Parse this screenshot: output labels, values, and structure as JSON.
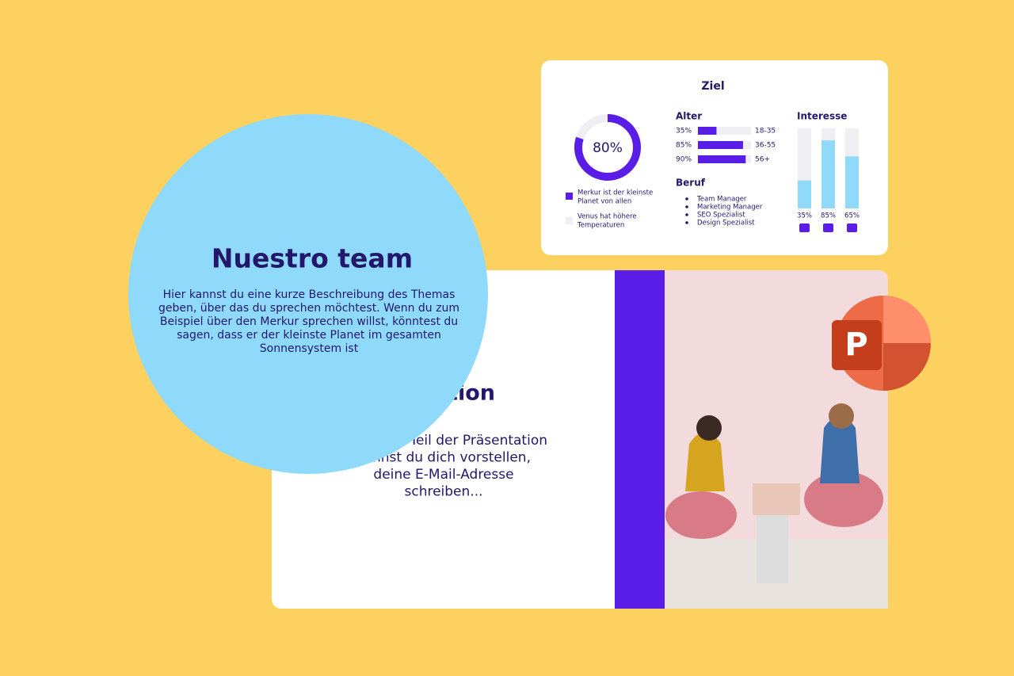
{
  "stats_slide": {
    "title": "Ziel",
    "donut": {
      "value": 80,
      "label": "80%"
    },
    "legend": [
      [
        "Merkur ist der kleinste",
        "Planet von allen"
      ],
      [
        "Venus hat höhere",
        "Temperaturen"
      ]
    ],
    "alter": {
      "title": "Alter",
      "rows": [
        {
          "value": 35,
          "label": "35%",
          "range": "18-35"
        },
        {
          "value": 85,
          "label": "85%",
          "range": "36-55"
        },
        {
          "value": 90,
          "label": "90%",
          "range": "56+"
        }
      ]
    },
    "beruf": {
      "title": "Beruf",
      "items": [
        "Team Manager",
        "Marketing Manager",
        "SEO Spezialist",
        "Design Spezialist"
      ]
    },
    "interesse": {
      "title": "Interesse",
      "bars": [
        {
          "value": 35,
          "label": "35%"
        },
        {
          "value": 85,
          "label": "85%"
        },
        {
          "value": 65,
          "label": "65%"
        }
      ]
    }
  },
  "intro_slide": {
    "title": "Präsentation",
    "lines": [
      "In diesem Teil der Präsentation",
      "kannst du dich vorstellen,",
      "deine E-Mail-Adresse",
      "schreiben..."
    ]
  },
  "team_circle": {
    "title": "Nuestro team",
    "lines": [
      "Hier kannst du eine kurze Beschreibung des Themas",
      "geben, über das du sprechen möchtest. Wenn du zum",
      "Beispiel über den Merkur sprechen willst, könntest du",
      "sagen, dass er der kleinste Planet im gesamten",
      "Sonnensystem ist"
    ]
  },
  "logo": {
    "letter": "P"
  }
}
